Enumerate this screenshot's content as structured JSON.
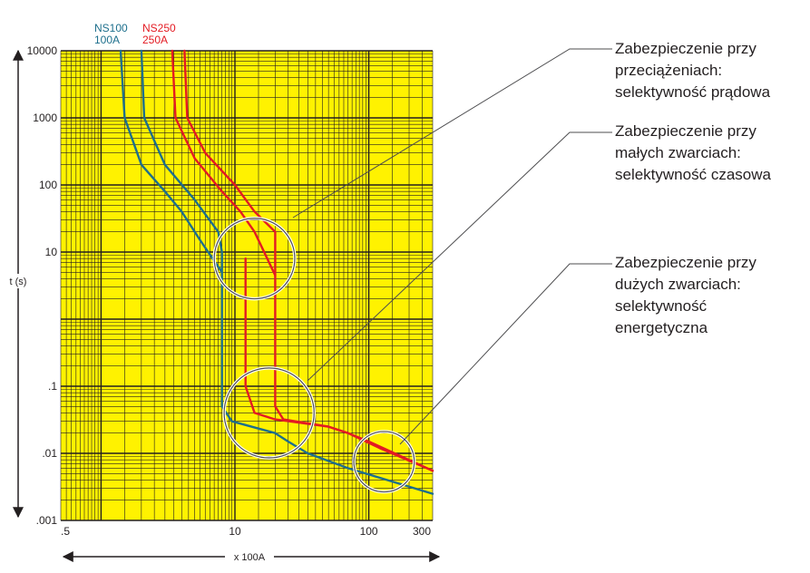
{
  "chart_data": {
    "type": "line",
    "x_scale": "log",
    "y_scale": "log",
    "xlim": [
      0.5,
      300
    ],
    "ylim": [
      0.001,
      10000
    ],
    "xlabel": "x 100A",
    "ylabel": "t (s)",
    "x_ticks": [
      {
        "value": 0.5,
        "label": ".5"
      },
      {
        "value": 10,
        "label": "10"
      },
      {
        "value": 100,
        "label": "100"
      },
      {
        "value": 300,
        "label": "300"
      }
    ],
    "y_ticks": [
      {
        "value": 10000,
        "label": "10000"
      },
      {
        "value": 1000,
        "label": "1000"
      },
      {
        "value": 100,
        "label": "100"
      },
      {
        "value": 10,
        "label": "10"
      },
      {
        "value": 0.1,
        "label": ".1"
      },
      {
        "value": 0.01,
        "label": ".01"
      },
      {
        "value": 0.001,
        "label": ".001"
      }
    ],
    "grid": true,
    "background_color": "#fff200",
    "series": [
      {
        "name": "NS100 100A",
        "color": "#1d6f8c",
        "curves": [
          [
            [
              1.4,
              10000
            ],
            [
              1.5,
              1000
            ],
            [
              2.0,
              200
            ],
            [
              3.0,
              80
            ],
            [
              4.0,
              40
            ],
            [
              5.5,
              15
            ],
            [
              8.0,
              5.0
            ]
          ],
          [
            [
              2.0,
              10000
            ],
            [
              2.1,
              1000
            ],
            [
              3.0,
              200
            ],
            [
              5.0,
              60
            ],
            [
              7.5,
              20
            ],
            [
              8.0,
              10
            ]
          ],
          [
            [
              8.0,
              10
            ],
            [
              8.0,
              0.05
            ],
            [
              9.5,
              0.03
            ],
            [
              20,
              0.02
            ],
            [
              25,
              0.015
            ],
            [
              35,
              0.01
            ],
            [
              70,
              0.006
            ],
            [
              300,
              0.0025
            ]
          ]
        ]
      },
      {
        "name": "NS250 250A",
        "color": "#e31b23",
        "curves": [
          [
            [
              3.4,
              10000
            ],
            [
              3.6,
              1000
            ],
            [
              5.0,
              250
            ],
            [
              8.0,
              80
            ],
            [
              11,
              40
            ],
            [
              14,
              20
            ],
            [
              20,
              4.5
            ]
          ],
          [
            [
              4.2,
              10000
            ],
            [
              4.4,
              1000
            ],
            [
              6.0,
              300
            ],
            [
              10,
              100
            ],
            [
              14,
              40
            ],
            [
              20,
              20
            ]
          ],
          [
            [
              20,
              20
            ],
            [
              20,
              0.05
            ],
            [
              23,
              0.032
            ],
            [
              50,
              0.025
            ],
            [
              70,
              0.02
            ],
            [
              100,
              0.015
            ],
            [
              300,
              0.0055
            ]
          ],
          [
            [
              12,
              8
            ],
            [
              12,
              0.1
            ],
            [
              14,
              0.04
            ],
            [
              20,
              0.032
            ],
            [
              50,
              0.025
            ],
            [
              70,
              0.02
            ],
            [
              120,
              0.012
            ],
            [
              300,
              0.0055
            ]
          ]
        ]
      }
    ],
    "circles": [
      {
        "center": [
          14,
          8
        ],
        "radius_decades": 0.6
      },
      {
        "center": [
          18,
          0.04
        ],
        "radius_decades": 0.67
      },
      {
        "center": [
          130,
          0.0075
        ],
        "radius_decades": 0.45
      }
    ],
    "annotations": [
      {
        "id": "overload",
        "lines": [
          "Zabezpieczenie przy",
          "przeciążeniach:",
          "selektywność prądowa"
        ]
      },
      {
        "id": "small-short",
        "lines": [
          "Zabezpieczenie przy",
          "małych zwarciach:",
          "selektywność czasowa"
        ]
      },
      {
        "id": "large-short",
        "lines": [
          "Zabezpieczenie przy",
          "dużych zwarciach:",
          "selektywność",
          "energetyczna"
        ]
      }
    ],
    "legend": [
      {
        "series": "NS100 100A",
        "line1": "NS100",
        "line2": "100A",
        "color": "#1d6f8c"
      },
      {
        "series": "NS250 250A",
        "line1": "NS250",
        "line2": "250A",
        "color": "#e31b23"
      }
    ]
  }
}
